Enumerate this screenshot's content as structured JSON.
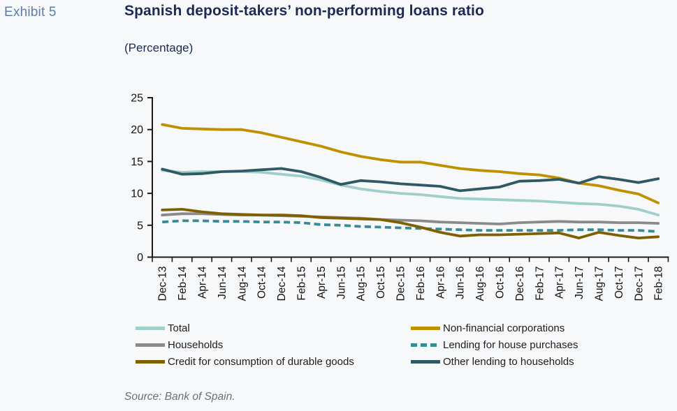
{
  "header": {
    "exhibit": "Exhibit 5",
    "title": "Spanish deposit-takers’ non-performing loans ratio",
    "subtitle": "(Percentage)"
  },
  "source": "Source: Bank of Spain.",
  "colors": {
    "exhibit_blue": "#5c7ea8",
    "title_navy": "#1b2a55",
    "axis": "#1a1a1a",
    "background": "#f7f8fa",
    "source_gray": "#6b6f75"
  },
  "chart_data": {
    "type": "line",
    "title": "Spanish deposit-takers’ non-performing loans ratio",
    "xlabel": "",
    "ylabel": "Percentage",
    "ylim": [
      0,
      25
    ],
    "yticks": [
      0,
      5,
      10,
      15,
      20,
      25
    ],
    "grid": false,
    "legend_position": "bottom",
    "categories": [
      "Dec-13",
      "Feb-14",
      "Apr-14",
      "Jun-14",
      "Aug-14",
      "Oct-14",
      "Dec-14",
      "Feb-15",
      "Apr-15",
      "Jun-15",
      "Aug-15",
      "Oct-15",
      "Dec-15",
      "Feb-16",
      "Apr-16",
      "Jun-16",
      "Aug-16",
      "Oct-16",
      "Dec-16",
      "Feb-17",
      "Apr-17",
      "Jun-17",
      "Aug-17",
      "Oct-17",
      "Dec-17",
      "Feb-18"
    ],
    "series": [
      {
        "name": "Total",
        "color": "#9fcfc9",
        "dash": false,
        "values": [
          13.6,
          13.3,
          13.4,
          13.4,
          13.4,
          13.3,
          13.0,
          12.7,
          12.1,
          11.3,
          10.7,
          10.3,
          10.0,
          9.8,
          9.5,
          9.2,
          9.1,
          9.0,
          8.9,
          8.8,
          8.6,
          8.4,
          8.3,
          8.0,
          7.5,
          6.6
        ]
      },
      {
        "name": "Non-financial corporations",
        "color": "#bf9000",
        "dash": false,
        "values": [
          20.8,
          20.2,
          20.1,
          20.0,
          20.0,
          19.5,
          18.8,
          18.1,
          17.4,
          16.5,
          15.8,
          15.3,
          14.9,
          14.9,
          14.4,
          13.9,
          13.6,
          13.4,
          13.1,
          12.9,
          12.4,
          11.6,
          11.2,
          10.5,
          9.9,
          8.5
        ]
      },
      {
        "name": "Households",
        "color": "#8a8a8a",
        "dash": false,
        "values": [
          6.6,
          6.8,
          6.8,
          6.7,
          6.6,
          6.6,
          6.5,
          6.4,
          6.3,
          6.2,
          6.1,
          5.9,
          5.8,
          5.7,
          5.5,
          5.4,
          5.3,
          5.2,
          5.4,
          5.5,
          5.6,
          5.5,
          5.5,
          5.4,
          5.4,
          5.3
        ]
      },
      {
        "name": "Lending for house purchases",
        "color": "#398b93",
        "dash": true,
        "values": [
          5.5,
          5.7,
          5.7,
          5.6,
          5.6,
          5.5,
          5.5,
          5.4,
          5.1,
          5.0,
          4.8,
          4.7,
          4.6,
          4.5,
          4.4,
          4.3,
          4.2,
          4.2,
          4.2,
          4.2,
          4.2,
          4.3,
          4.3,
          4.2,
          4.2,
          4.0
        ]
      },
      {
        "name": "Credit for consumption of durable goods",
        "color": "#7f6000",
        "dash": false,
        "values": [
          7.4,
          7.5,
          7.1,
          6.8,
          6.7,
          6.6,
          6.6,
          6.5,
          6.2,
          6.1,
          6.0,
          5.9,
          5.4,
          4.7,
          3.9,
          3.3,
          3.5,
          3.5,
          3.6,
          3.7,
          3.8,
          3.0,
          3.9,
          3.4,
          3.0,
          3.2
        ]
      },
      {
        "name": "Other lending to households",
        "color": "#2e5a66",
        "dash": false,
        "values": [
          13.8,
          13.0,
          13.1,
          13.4,
          13.5,
          13.7,
          13.9,
          13.4,
          12.5,
          11.4,
          12.0,
          11.8,
          11.5,
          11.3,
          11.1,
          10.4,
          10.7,
          11.0,
          11.9,
          12.0,
          12.2,
          11.6,
          12.6,
          12.2,
          11.7,
          12.3
        ]
      }
    ]
  }
}
